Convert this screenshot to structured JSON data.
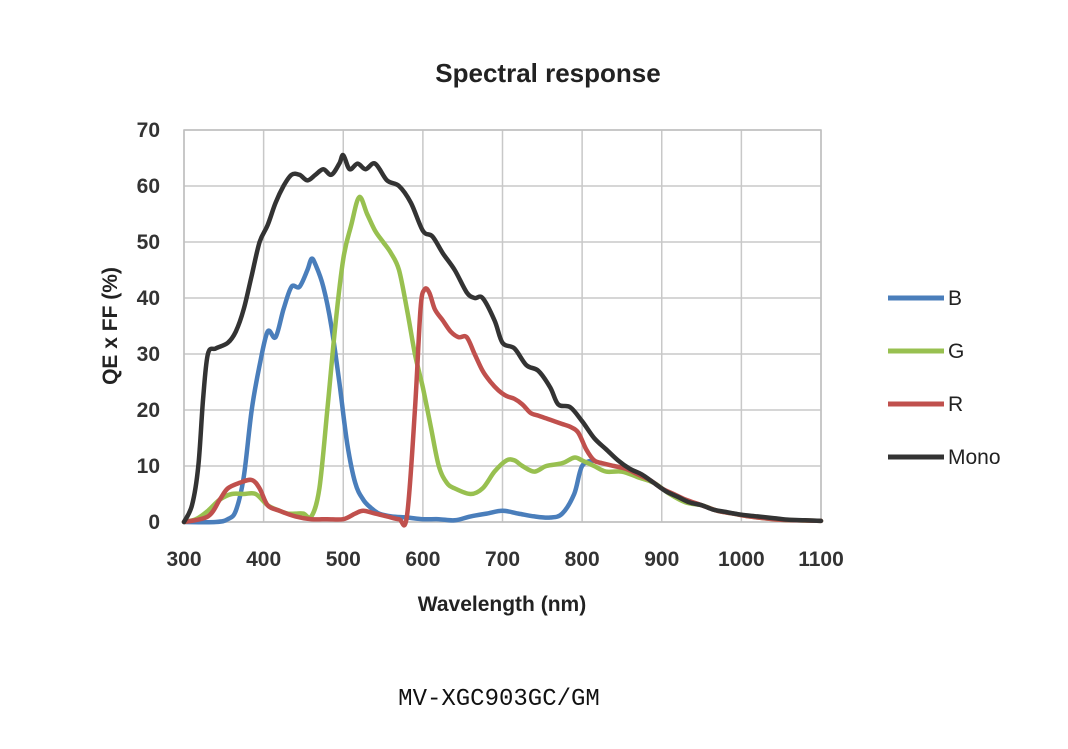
{
  "chart_data": {
    "type": "line",
    "title": "Spectral response",
    "xlabel": "Wavelength (nm)",
    "ylabel": "QE x FF (%)",
    "xlim": [
      300,
      1100
    ],
    "ylim": [
      0,
      70
    ],
    "xticks": [
      300,
      400,
      500,
      600,
      700,
      800,
      900,
      1000,
      1100
    ],
    "yticks": [
      0,
      10,
      20,
      30,
      40,
      50,
      60,
      70
    ],
    "grid": true,
    "legend_position": "right",
    "series": [
      {
        "name": "B",
        "color": "#4a7ebb",
        "points": [
          [
            300,
            0
          ],
          [
            340,
            0
          ],
          [
            355,
            0.5
          ],
          [
            365,
            2
          ],
          [
            375,
            8
          ],
          [
            385,
            20
          ],
          [
            395,
            28
          ],
          [
            405,
            34
          ],
          [
            415,
            33
          ],
          [
            425,
            38
          ],
          [
            435,
            42
          ],
          [
            445,
            42
          ],
          [
            455,
            45
          ],
          [
            460,
            47
          ],
          [
            465,
            46
          ],
          [
            475,
            42
          ],
          [
            485,
            35
          ],
          [
            495,
            25
          ],
          [
            505,
            14
          ],
          [
            515,
            7
          ],
          [
            525,
            4
          ],
          [
            535,
            2.5
          ],
          [
            545,
            1.5
          ],
          [
            560,
            1
          ],
          [
            580,
            0.8
          ],
          [
            600,
            0.5
          ],
          [
            620,
            0.5
          ],
          [
            640,
            0.3
          ],
          [
            660,
            1
          ],
          [
            680,
            1.5
          ],
          [
            700,
            2
          ],
          [
            720,
            1.5
          ],
          [
            740,
            1
          ],
          [
            760,
            0.8
          ],
          [
            775,
            1.5
          ],
          [
            790,
            5
          ],
          [
            800,
            10
          ],
          [
            815,
            11
          ]
        ]
      },
      {
        "name": "G",
        "color": "#98c050",
        "points": [
          [
            300,
            0
          ],
          [
            315,
            0.5
          ],
          [
            330,
            2
          ],
          [
            345,
            4
          ],
          [
            360,
            5
          ],
          [
            375,
            5
          ],
          [
            390,
            5
          ],
          [
            405,
            3
          ],
          [
            420,
            2
          ],
          [
            430,
            1.5
          ],
          [
            440,
            1.5
          ],
          [
            450,
            1.5
          ],
          [
            460,
            1
          ],
          [
            470,
            6
          ],
          [
            480,
            20
          ],
          [
            490,
            35
          ],
          [
            500,
            47
          ],
          [
            510,
            53
          ],
          [
            520,
            58
          ],
          [
            530,
            55
          ],
          [
            540,
            52
          ],
          [
            550,
            50
          ],
          [
            560,
            48
          ],
          [
            570,
            45
          ],
          [
            580,
            38
          ],
          [
            590,
            30
          ],
          [
            600,
            24
          ],
          [
            610,
            17
          ],
          [
            620,
            10
          ],
          [
            630,
            7
          ],
          [
            640,
            6
          ],
          [
            660,
            5
          ],
          [
            675,
            6
          ],
          [
            690,
            9
          ],
          [
            705,
            11
          ],
          [
            715,
            11
          ],
          [
            725,
            10
          ],
          [
            740,
            9
          ],
          [
            755,
            10
          ],
          [
            775,
            10.5
          ],
          [
            790,
            11.5
          ],
          [
            800,
            11
          ],
          [
            815,
            10
          ],
          [
            830,
            9
          ],
          [
            850,
            9
          ],
          [
            870,
            8
          ],
          [
            890,
            7
          ],
          [
            910,
            5
          ],
          [
            930,
            3.5
          ],
          [
            950,
            3
          ],
          [
            970,
            2
          ],
          [
            990,
            1.5
          ],
          [
            1010,
            1
          ],
          [
            1040,
            0.5
          ],
          [
            1070,
            0.3
          ],
          [
            1100,
            0.2
          ]
        ]
      },
      {
        "name": "R",
        "color": "#c0504d",
        "points": [
          [
            300,
            0
          ],
          [
            330,
            1
          ],
          [
            345,
            4
          ],
          [
            355,
            6
          ],
          [
            370,
            7
          ],
          [
            385,
            7.5
          ],
          [
            395,
            6
          ],
          [
            405,
            3
          ],
          [
            420,
            2
          ],
          [
            440,
            1
          ],
          [
            460,
            0.5
          ],
          [
            480,
            0.5
          ],
          [
            500,
            0.5
          ],
          [
            515,
            1.5
          ],
          [
            525,
            2
          ],
          [
            540,
            1.5
          ],
          [
            555,
            1
          ],
          [
            570,
            0.5
          ],
          [
            580,
            1
          ],
          [
            590,
            20
          ],
          [
            597,
            38
          ],
          [
            602,
            41.5
          ],
          [
            608,
            41
          ],
          [
            615,
            38
          ],
          [
            625,
            36
          ],
          [
            635,
            34
          ],
          [
            645,
            33
          ],
          [
            655,
            33
          ],
          [
            665,
            30
          ],
          [
            675,
            27
          ],
          [
            685,
            25
          ],
          [
            695,
            23.5
          ],
          [
            705,
            22.5
          ],
          [
            715,
            22
          ],
          [
            725,
            21
          ],
          [
            735,
            19.5
          ],
          [
            745,
            19
          ],
          [
            755,
            18.5
          ],
          [
            765,
            18
          ],
          [
            775,
            17.5
          ],
          [
            785,
            17
          ],
          [
            795,
            16
          ],
          [
            805,
            13
          ],
          [
            815,
            11
          ],
          [
            825,
            10.5
          ],
          [
            840,
            10
          ],
          [
            855,
            9.5
          ],
          [
            870,
            8.5
          ],
          [
            885,
            7.5
          ],
          [
            900,
            6
          ],
          [
            915,
            5
          ],
          [
            930,
            4
          ],
          [
            950,
            3
          ],
          [
            970,
            2
          ],
          [
            990,
            1.5
          ],
          [
            1010,
            1
          ],
          [
            1040,
            0.5
          ],
          [
            1070,
            0.3
          ],
          [
            1100,
            0.2
          ]
        ]
      },
      {
        "name": "Mono",
        "color": "#333333",
        "points": [
          [
            300,
            0
          ],
          [
            310,
            3
          ],
          [
            318,
            10
          ],
          [
            324,
            22
          ],
          [
            330,
            30
          ],
          [
            340,
            31
          ],
          [
            355,
            32
          ],
          [
            365,
            34
          ],
          [
            375,
            38
          ],
          [
            385,
            44
          ],
          [
            395,
            50
          ],
          [
            405,
            53
          ],
          [
            415,
            57
          ],
          [
            425,
            60
          ],
          [
            435,
            62
          ],
          [
            445,
            62
          ],
          [
            455,
            61
          ],
          [
            465,
            62
          ],
          [
            475,
            63
          ],
          [
            485,
            62
          ],
          [
            495,
            64
          ],
          [
            500,
            65.5
          ],
          [
            508,
            63
          ],
          [
            518,
            64
          ],
          [
            528,
            63
          ],
          [
            540,
            64
          ],
          [
            555,
            61
          ],
          [
            570,
            60
          ],
          [
            585,
            57
          ],
          [
            600,
            52
          ],
          [
            612,
            51
          ],
          [
            625,
            48
          ],
          [
            640,
            45
          ],
          [
            655,
            41
          ],
          [
            665,
            40
          ],
          [
            675,
            40
          ],
          [
            690,
            36
          ],
          [
            700,
            32
          ],
          [
            715,
            31
          ],
          [
            730,
            28
          ],
          [
            745,
            27
          ],
          [
            760,
            24
          ],
          [
            770,
            21
          ],
          [
            785,
            20.5
          ],
          [
            800,
            18
          ],
          [
            815,
            15
          ],
          [
            830,
            13
          ],
          [
            845,
            11
          ],
          [
            860,
            9.5
          ],
          [
            875,
            8.5
          ],
          [
            890,
            7
          ],
          [
            905,
            5.5
          ],
          [
            920,
            4.5
          ],
          [
            935,
            3.5
          ],
          [
            950,
            3
          ],
          [
            965,
            2.2
          ],
          [
            980,
            1.8
          ],
          [
            1000,
            1.3
          ],
          [
            1020,
            1
          ],
          [
            1040,
            0.7
          ],
          [
            1060,
            0.4
          ],
          [
            1080,
            0.3
          ],
          [
            1100,
            0.2
          ]
        ]
      }
    ]
  },
  "caption": "MV-XGC903GC/GM"
}
